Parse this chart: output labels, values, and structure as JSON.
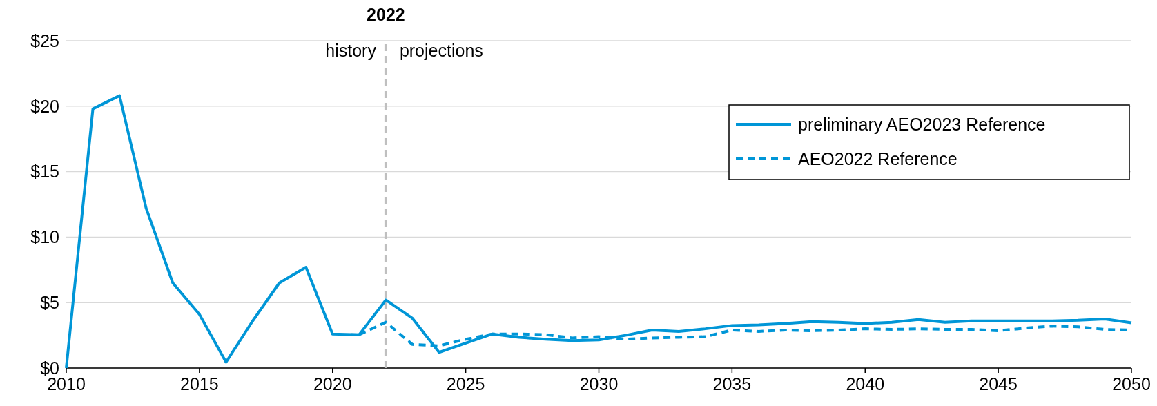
{
  "chart_data": {
    "type": "line",
    "x": [
      2010,
      2011,
      2012,
      2013,
      2014,
      2015,
      2016,
      2017,
      2018,
      2019,
      2020,
      2021,
      2022,
      2023,
      2024,
      2025,
      2026,
      2027,
      2028,
      2029,
      2030,
      2031,
      2032,
      2033,
      2034,
      2035,
      2036,
      2037,
      2038,
      2039,
      2040,
      2041,
      2042,
      2043,
      2044,
      2045,
      2046,
      2047,
      2048,
      2049,
      2050
    ],
    "series": [
      {
        "name": "preliminary AEO2023 Reference",
        "color": "#0096d7",
        "line_style": "solid",
        "values": [
          0,
          19.8,
          20.8,
          12.2,
          6.5,
          4.1,
          0.45,
          3.6,
          6.5,
          7.7,
          2.6,
          2.55,
          5.2,
          3.8,
          1.2,
          1.9,
          2.6,
          2.35,
          2.2,
          2.1,
          2.15,
          2.5,
          2.9,
          2.8,
          3.0,
          3.25,
          3.3,
          3.4,
          3.55,
          3.5,
          3.4,
          3.5,
          3.7,
          3.5,
          3.6,
          3.6,
          3.6,
          3.6,
          3.65,
          3.75,
          3.45
        ]
      },
      {
        "name": "AEO2022 Reference",
        "color": "#0096d7",
        "line_style": "dashed",
        "values": [
          null,
          null,
          null,
          null,
          null,
          null,
          null,
          null,
          null,
          null,
          null,
          2.55,
          3.5,
          1.8,
          1.7,
          2.2,
          2.6,
          2.6,
          2.55,
          2.3,
          2.4,
          2.2,
          2.3,
          2.35,
          2.4,
          2.9,
          2.8,
          2.9,
          2.85,
          2.9,
          3.0,
          2.95,
          3.0,
          2.95,
          2.95,
          2.85,
          3.05,
          3.2,
          3.15,
          2.95,
          2.9
        ]
      }
    ],
    "xlim": [
      2010,
      2050
    ],
    "xticks": [
      2010,
      2015,
      2020,
      2025,
      2030,
      2035,
      2040,
      2045,
      2050
    ],
    "ylim": [
      0,
      25
    ],
    "yticks": [
      {
        "value": 0,
        "label": "$0"
      },
      {
        "value": 5,
        "label": "$5"
      },
      {
        "value": 10,
        "label": "$10"
      },
      {
        "value": 15,
        "label": "$15"
      },
      {
        "value": 20,
        "label": "$20"
      },
      {
        "value": 25,
        "label": "$25"
      }
    ],
    "grid": "y",
    "legend": "top right",
    "ref_lines": [
      {
        "axis": "x",
        "value": 2022,
        "label": "2022",
        "color": "#bfbfbf",
        "line_style": "dashed"
      }
    ],
    "annotations": [
      "history",
      "projections"
    ]
  }
}
